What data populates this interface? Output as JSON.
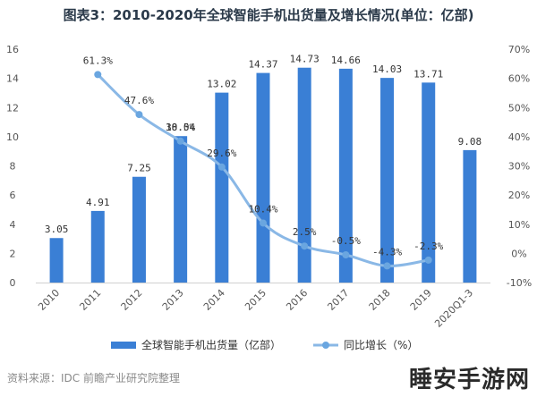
{
  "title": "图表3：2010-2020年全球智能手机出货量及增长情况(单位：亿部)",
  "source": "资料来源：IDC 前瞻产业研究院整理",
  "watermark": "睡安手游网",
  "colors": {
    "bar": "#3a7fd5",
    "line": "#8ab8e6",
    "point": "#6aa6e0"
  },
  "chart_data": {
    "type": "bar",
    "categories": [
      "2010",
      "2011",
      "2012",
      "2013",
      "2014",
      "2015",
      "2016",
      "2017",
      "2018",
      "2019",
      "2020Q1-3"
    ],
    "category_labels": [
      "2010",
      "2011",
      "2012",
      "2013",
      "2014",
      "2015",
      "2016",
      "2017",
      "2018",
      "2019",
      "2020Q1-3"
    ],
    "series": [
      {
        "name": "全球智能手机出货量（亿部）",
        "type": "bar",
        "axis": "left",
        "values": [
          3.05,
          4.91,
          7.25,
          10.04,
          13.02,
          14.37,
          14.73,
          14.66,
          14.03,
          13.71,
          9.08
        ],
        "labels": [
          "3.05",
          "4.91",
          "7.25",
          "10.04",
          "13.02",
          "14.37",
          "14.73",
          "14.66",
          "14.03",
          "13.71",
          "9.08"
        ]
      },
      {
        "name": "同比增长（%）",
        "type": "line",
        "axis": "right",
        "values": [
          null,
          61.3,
          47.6,
          38.5,
          29.6,
          10.4,
          2.5,
          -0.5,
          -4.3,
          -2.3,
          null
        ],
        "labels": [
          "",
          "61.3%",
          "47.6%",
          "38.5%",
          "29.6%",
          "10.4%",
          "2.5%",
          "-0.5%",
          "-4.3%",
          "-2.3%",
          ""
        ]
      }
    ],
    "y_left": {
      "ylim": [
        0,
        16
      ],
      "ticks": [
        "0",
        "2",
        "4",
        "6",
        "8",
        "10",
        "12",
        "14",
        "16"
      ]
    },
    "y_right": {
      "ylim": [
        -10,
        70
      ],
      "ticks": [
        "-10%",
        "0%",
        "10%",
        "20%",
        "30%",
        "40%",
        "50%",
        "60%",
        "70%"
      ]
    },
    "grid": false,
    "legend_position": "bottom"
  }
}
